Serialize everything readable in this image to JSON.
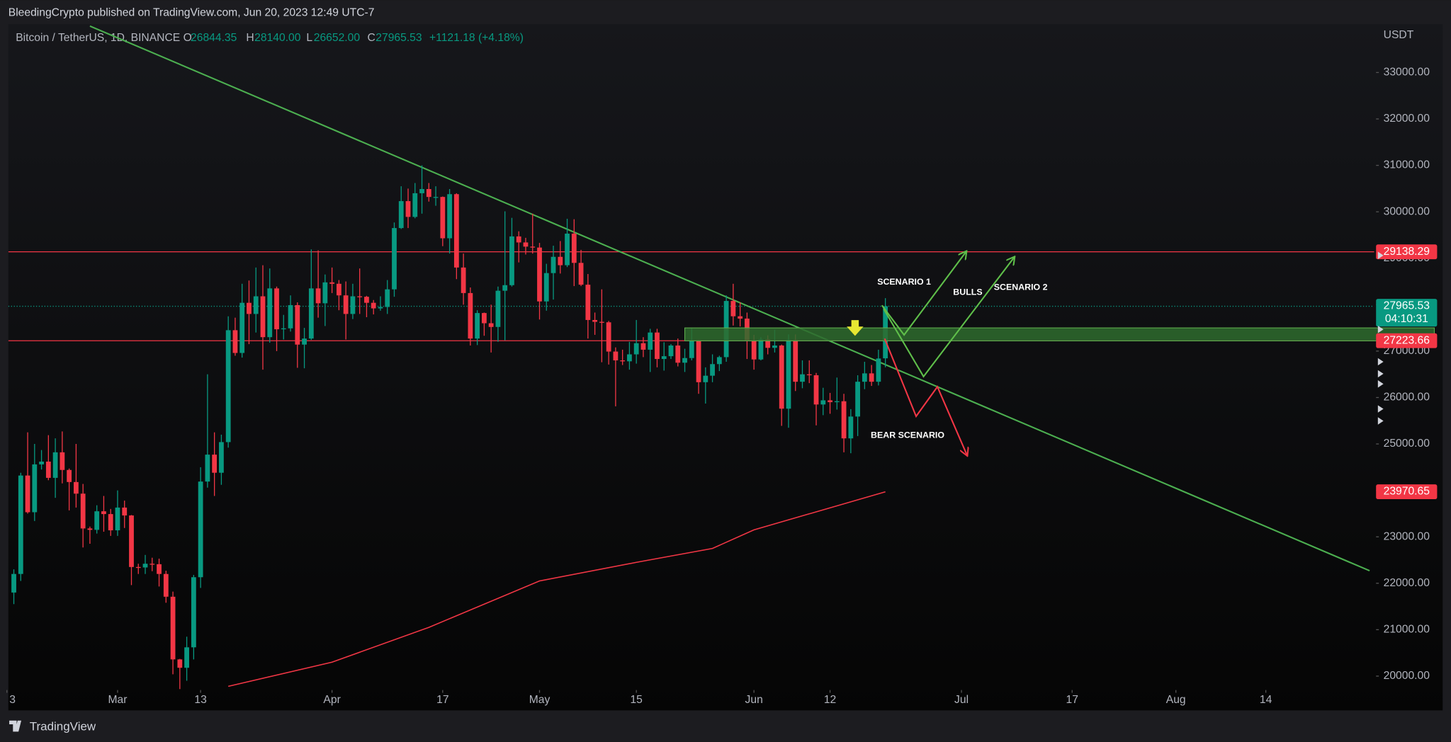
{
  "chart_data": {
    "type": "candlestick",
    "attribution": "BleedingCrypto published on TradingView.com, Jun 20, 2023 12:49 UTC-7",
    "legend": {
      "open_label": "O",
      "open": "26844.35",
      "high_label": "H",
      "high": "28140.00",
      "low_label": "L",
      "low": "26652.00",
      "close_label": "C",
      "close": "27965.53",
      "change": "+1121.18 (+4.18%)"
    },
    "currency": "USDT",
    "footer": "TradingView",
    "xlim": [
      "2023-02-12",
      "2023-08-29"
    ],
    "xticks": [
      {
        "value": "2023-02-13",
        "label": "3"
      },
      {
        "value": "2023-03-01",
        "label": "Mar"
      },
      {
        "value": "2023-03-13",
        "label": "13"
      },
      {
        "value": "2023-04-01",
        "label": "Apr"
      },
      {
        "value": "2023-04-17",
        "label": "17"
      },
      {
        "value": "2023-05-01",
        "label": "May"
      },
      {
        "value": "2023-05-15",
        "label": "15"
      },
      {
        "value": "2023-06-01",
        "label": "Jun"
      },
      {
        "value": "2023-06-12",
        "label": "12"
      },
      {
        "value": "2023-07-01",
        "label": "Jul"
      },
      {
        "value": "2023-07-17",
        "label": "17"
      },
      {
        "value": "2023-08-01",
        "label": "Aug"
      },
      {
        "value": "2023-08-14",
        "label": "14"
      }
    ],
    "ylim": [
      19720,
      34040
    ],
    "yticks": [
      {
        "value": 20000,
        "label": "20000.00"
      },
      {
        "value": 21000,
        "label": "21000.00"
      },
      {
        "value": 22000,
        "label": "22000.00"
      },
      {
        "value": 23000,
        "label": "23000.00"
      },
      {
        "value": 24000,
        "label": "24000.00"
      },
      {
        "value": 25000,
        "label": "25000.00"
      },
      {
        "value": 26000,
        "label": "26000.00"
      },
      {
        "value": 27000,
        "label": "27000.00"
      },
      {
        "value": 28000,
        "label": "28000.00"
      },
      {
        "value": 29000,
        "label": "29000.00"
      },
      {
        "value": 30000,
        "label": "30000.00"
      },
      {
        "value": 31000,
        "label": "31000.00"
      },
      {
        "value": 32000,
        "label": "32000.00"
      },
      {
        "value": 33000,
        "label": "33000.00"
      }
    ],
    "series": [
      {
        "name": "Bitcoin / TetherUS, 1D, BINANCE",
        "up_color": "#089981",
        "down_color": "#f23645",
        "x": [
          "2023-02-14",
          "2023-02-15",
          "2023-02-16",
          "2023-02-17",
          "2023-02-18",
          "2023-02-19",
          "2023-02-20",
          "2023-02-21",
          "2023-02-22",
          "2023-02-23",
          "2023-02-24",
          "2023-02-25",
          "2023-02-26",
          "2023-02-27",
          "2023-02-28",
          "2023-03-01",
          "2023-03-02",
          "2023-03-03",
          "2023-03-04",
          "2023-03-05",
          "2023-03-06",
          "2023-03-07",
          "2023-03-08",
          "2023-03-09",
          "2023-03-10",
          "2023-03-11",
          "2023-03-12",
          "2023-03-13",
          "2023-03-14",
          "2023-03-15",
          "2023-03-16",
          "2023-03-17",
          "2023-03-18",
          "2023-03-19",
          "2023-03-20",
          "2023-03-21",
          "2023-03-22",
          "2023-03-23",
          "2023-03-24",
          "2023-03-25",
          "2023-03-26",
          "2023-03-27",
          "2023-03-28",
          "2023-03-29",
          "2023-03-30",
          "2023-03-31",
          "2023-04-01",
          "2023-04-02",
          "2023-04-03",
          "2023-04-04",
          "2023-04-05",
          "2023-04-06",
          "2023-04-07",
          "2023-04-08",
          "2023-04-09",
          "2023-04-10",
          "2023-04-11",
          "2023-04-12",
          "2023-04-13",
          "2023-04-14",
          "2023-04-15",
          "2023-04-16",
          "2023-04-17",
          "2023-04-18",
          "2023-04-19",
          "2023-04-20",
          "2023-04-21",
          "2023-04-22",
          "2023-04-23",
          "2023-04-24",
          "2023-04-25",
          "2023-04-26",
          "2023-04-27",
          "2023-04-28",
          "2023-04-29",
          "2023-04-30",
          "2023-05-01",
          "2023-05-02",
          "2023-05-03",
          "2023-05-04",
          "2023-05-05",
          "2023-05-06",
          "2023-05-07",
          "2023-05-08",
          "2023-05-09",
          "2023-05-10",
          "2023-05-11",
          "2023-05-12",
          "2023-05-13",
          "2023-05-14",
          "2023-05-15",
          "2023-05-16",
          "2023-05-17",
          "2023-05-18",
          "2023-05-19",
          "2023-05-20",
          "2023-05-21",
          "2023-05-22",
          "2023-05-23",
          "2023-05-24",
          "2023-05-25",
          "2023-05-26",
          "2023-05-27",
          "2023-05-28",
          "2023-05-29",
          "2023-05-30",
          "2023-05-31",
          "2023-06-01",
          "2023-06-02",
          "2023-06-03",
          "2023-06-04",
          "2023-06-05",
          "2023-06-06",
          "2023-06-07",
          "2023-06-08",
          "2023-06-09",
          "2023-06-10",
          "2023-06-11",
          "2023-06-12",
          "2023-06-13",
          "2023-06-14",
          "2023-06-15",
          "2023-06-16",
          "2023-06-17",
          "2023-06-18",
          "2023-06-19",
          "2023-06-20"
        ],
        "ohlc": [
          [
            21800,
            22300,
            21550,
            22200
          ],
          [
            22200,
            24380,
            22050,
            24320
          ],
          [
            24320,
            25250,
            23500,
            23530
          ],
          [
            23530,
            25000,
            23340,
            24560
          ],
          [
            24560,
            24870,
            24450,
            24620
          ],
          [
            24620,
            25190,
            24220,
            24270
          ],
          [
            24270,
            25120,
            23840,
            24820
          ],
          [
            24820,
            25270,
            24150,
            24440
          ],
          [
            24440,
            24470,
            23570,
            24180
          ],
          [
            24180,
            25000,
            23630,
            23930
          ],
          [
            23930,
            24140,
            22770,
            23180
          ],
          [
            23180,
            23220,
            22850,
            23150
          ],
          [
            23150,
            23680,
            23070,
            23550
          ],
          [
            23550,
            23880,
            23110,
            23490
          ],
          [
            23490,
            23600,
            23020,
            23140
          ],
          [
            23140,
            24000,
            23020,
            23630
          ],
          [
            23630,
            23780,
            23190,
            23460
          ],
          [
            23460,
            23470,
            21960,
            22350
          ],
          [
            22350,
            22420,
            22200,
            22340
          ],
          [
            22340,
            22610,
            22200,
            22420
          ],
          [
            22420,
            22550,
            22260,
            22410
          ],
          [
            22410,
            22530,
            21930,
            22200
          ],
          [
            22200,
            22270,
            21580,
            21710
          ],
          [
            21710,
            21820,
            20040,
            20360
          ],
          [
            20360,
            20370,
            19550,
            20180
          ],
          [
            20180,
            20850,
            19900,
            20620
          ],
          [
            20620,
            22180,
            20360,
            22130
          ],
          [
            22130,
            24500,
            21900,
            24190
          ],
          [
            24190,
            26500,
            24060,
            24770
          ],
          [
            24770,
            25250,
            23880,
            24380
          ],
          [
            24380,
            25200,
            24120,
            25040
          ],
          [
            25040,
            27750,
            24920,
            27450
          ],
          [
            27450,
            27720,
            26900,
            26960
          ],
          [
            26960,
            28450,
            26860,
            28040
          ],
          [
            28040,
            28520,
            27150,
            27800
          ],
          [
            27800,
            28800,
            27400,
            28180
          ],
          [
            28180,
            28850,
            26600,
            27300
          ],
          [
            27300,
            28780,
            27180,
            28350
          ],
          [
            28350,
            28390,
            27000,
            27470
          ],
          [
            27470,
            27780,
            27250,
            27490
          ],
          [
            27490,
            28200,
            27420,
            27990
          ],
          [
            27990,
            28050,
            26640,
            27140
          ],
          [
            27140,
            27500,
            26630,
            27270
          ],
          [
            27270,
            29190,
            27240,
            28350
          ],
          [
            28350,
            29170,
            27720,
            28030
          ],
          [
            28030,
            28650,
            27540,
            28480
          ],
          [
            28480,
            28800,
            28250,
            28450
          ],
          [
            28450,
            28530,
            27880,
            28200
          ],
          [
            28200,
            28500,
            27250,
            27800
          ],
          [
            27800,
            28450,
            27690,
            28180
          ],
          [
            28180,
            28780,
            27800,
            28170
          ],
          [
            28170,
            28190,
            27730,
            28040
          ],
          [
            28040,
            28100,
            27790,
            27920
          ],
          [
            27920,
            28180,
            27870,
            27950
          ],
          [
            27950,
            28530,
            27800,
            28330
          ],
          [
            28330,
            29770,
            28170,
            29650
          ],
          [
            29650,
            30550,
            29630,
            30230
          ],
          [
            30230,
            30500,
            29650,
            29890
          ],
          [
            29890,
            30620,
            29860,
            30400
          ],
          [
            30400,
            31000,
            29960,
            30490
          ],
          [
            30490,
            30620,
            30220,
            30320
          ],
          [
            30320,
            30550,
            30130,
            30320
          ],
          [
            30320,
            30330,
            29260,
            29430
          ],
          [
            29430,
            30490,
            29100,
            30380
          ],
          [
            30380,
            30400,
            28550,
            28800
          ],
          [
            28800,
            29100,
            28000,
            28250
          ],
          [
            28250,
            28370,
            27120,
            27270
          ],
          [
            27270,
            27880,
            27130,
            27820
          ],
          [
            27820,
            27830,
            27330,
            27600
          ],
          [
            27600,
            28000,
            26970,
            27520
          ],
          [
            27520,
            28390,
            27200,
            28300
          ],
          [
            28300,
            30010,
            27230,
            28420
          ],
          [
            28420,
            29870,
            28390,
            29470
          ],
          [
            29470,
            29580,
            28910,
            29340
          ],
          [
            29340,
            29440,
            29080,
            29250
          ],
          [
            29250,
            29960,
            29100,
            29230
          ],
          [
            29230,
            29330,
            27680,
            28070
          ],
          [
            28070,
            28880,
            27870,
            28680
          ],
          [
            28680,
            29270,
            28110,
            29030
          ],
          [
            29030,
            29370,
            28670,
            28850
          ],
          [
            28850,
            29850,
            28810,
            29530
          ],
          [
            29530,
            29840,
            28400,
            28900
          ],
          [
            28900,
            29180,
            28400,
            28430
          ],
          [
            28430,
            28660,
            27270,
            27670
          ],
          [
            27670,
            27830,
            27350,
            27630
          ],
          [
            27630,
            28330,
            26760,
            27620
          ],
          [
            27620,
            27650,
            26710,
            26990
          ],
          [
            26990,
            27080,
            25810,
            26800
          ],
          [
            26800,
            27030,
            26700,
            26780
          ],
          [
            26780,
            27200,
            26600,
            26930
          ],
          [
            26930,
            27670,
            26730,
            27170
          ],
          [
            27170,
            27300,
            26870,
            27030
          ],
          [
            27030,
            27480,
            26550,
            27400
          ],
          [
            27400,
            27480,
            26650,
            26830
          ],
          [
            26830,
            27190,
            26580,
            26890
          ],
          [
            26890,
            27150,
            26830,
            27120
          ],
          [
            27120,
            27270,
            26670,
            26750
          ],
          [
            26750,
            27050,
            26550,
            26850
          ],
          [
            26850,
            27500,
            26800,
            27230
          ],
          [
            27230,
            27240,
            26080,
            26330
          ],
          [
            26330,
            26650,
            25870,
            26470
          ],
          [
            26470,
            26930,
            26330,
            26720
          ],
          [
            26720,
            26900,
            26570,
            26870
          ],
          [
            26870,
            28200,
            26770,
            28080
          ],
          [
            28080,
            28450,
            27550,
            27750
          ],
          [
            27750,
            28050,
            27530,
            27700
          ],
          [
            27700,
            27830,
            26830,
            27220
          ],
          [
            27220,
            27350,
            26600,
            26820
          ],
          [
            26820,
            27300,
            26800,
            27250
          ],
          [
            27250,
            27340,
            26930,
            27070
          ],
          [
            27070,
            27460,
            26970,
            27120
          ],
          [
            27120,
            27140,
            25390,
            25760
          ],
          [
            25760,
            27360,
            25350,
            27240
          ],
          [
            27240,
            27360,
            26140,
            26340
          ],
          [
            26340,
            26800,
            26200,
            26500
          ],
          [
            26500,
            26800,
            26310,
            26480
          ],
          [
            26480,
            26530,
            25400,
            25850
          ],
          [
            25850,
            26210,
            25620,
            25940
          ],
          [
            25940,
            26100,
            25650,
            25900
          ],
          [
            25900,
            26430,
            25740,
            25920
          ],
          [
            25920,
            26080,
            24820,
            25120
          ],
          [
            25120,
            25750,
            24800,
            25590
          ],
          [
            25590,
            26480,
            25170,
            26340
          ],
          [
            26340,
            26770,
            26180,
            26520
          ],
          [
            26520,
            26700,
            26250,
            26340
          ],
          [
            26340,
            27030,
            26260,
            26840
          ],
          [
            26844.35,
            28140,
            26652,
            27965.53
          ]
        ]
      }
    ],
    "moving_average": {
      "color": "#f23645",
      "x": [
        "2023-03-17",
        "2023-04-01",
        "2023-04-15",
        "2023-05-01",
        "2023-05-15",
        "2023-05-26",
        "2023-06-01",
        "2023-06-20"
      ],
      "values": [
        19780,
        20300,
        21050,
        22050,
        22450,
        22750,
        23150,
        23970
      ]
    },
    "trendline": {
      "color": "#4caf50",
      "x": [
        "2023-02-25",
        "2023-08-29"
      ],
      "values": [
        34000,
        22270
      ]
    },
    "zone": {
      "color": "#2e6b2e",
      "border": "#5fae4f",
      "x": [
        "2023-05-22",
        "2023-08-29"
      ],
      "values": [
        27220,
        27500
      ]
    },
    "levels": [
      {
        "value": 29138.29,
        "color": "#f23645",
        "style": "solid"
      },
      {
        "value": 27965.53,
        "color": "#089981",
        "style": "dotted",
        "countdown": "04:10:31"
      },
      {
        "value": 27223.66,
        "color": "#f23645",
        "style": "solid"
      },
      {
        "value": 23970.65,
        "color": "#f23645",
        "style": "none"
      }
    ],
    "annotations": [
      "SCENARIO 1",
      "BULLS",
      "SCENARIO 2",
      "BEAR SCENARIO"
    ]
  }
}
